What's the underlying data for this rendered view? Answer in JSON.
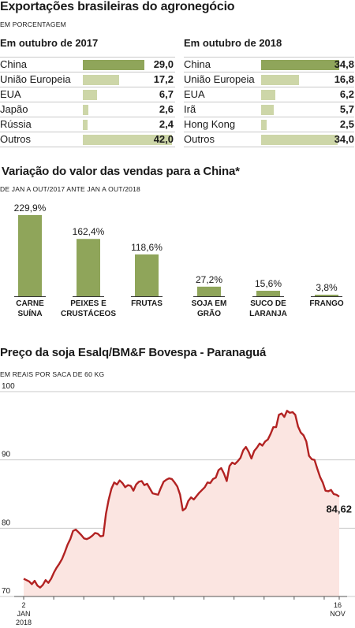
{
  "header": {
    "title": "Exportações brasileiras do agronegócio",
    "subtitle": "EM PORCENTAGEM"
  },
  "colors": {
    "bar_dark": "#8fa55a",
    "bar_light": "#cdd6a8",
    "line": "#b22222",
    "area": "#fbe5e1",
    "grid": "#c8c8c8"
  },
  "chart_data": [
    {
      "type": "bar",
      "title": "Em outubro de 2017",
      "categories": [
        "China",
        "União Europeia",
        "EUA",
        "Japão",
        "Rússia",
        "Outros"
      ],
      "values": [
        29.0,
        17.2,
        6.7,
        2.6,
        2.4,
        42.0
      ],
      "labels": [
        "29,0",
        "17,2",
        "6,7",
        "2,6",
        "2,4",
        "42,0"
      ]
    },
    {
      "type": "bar",
      "title": "Em outubro de 2018",
      "categories": [
        "China",
        "União Europeia",
        "EUA",
        "Irã",
        "Hong Kong",
        "Outros"
      ],
      "values": [
        34.8,
        16.8,
        6.2,
        5.7,
        2.5,
        34.0
      ],
      "labels": [
        "34,8",
        "16,8",
        "6,2",
        "5,7",
        "2,5",
        "34,0"
      ]
    },
    {
      "type": "bar",
      "title": "Variação do valor das vendas para a China*",
      "subtitle": "DE JAN A OUT/2017 ANTE JAN A OUT/2018",
      "categories": [
        "CARNE SUÍNA",
        "PEIXES E CRUSTÁCEOS",
        "FRUTAS",
        "SOJA EM GRÃO",
        "SUCO DE LARANJA",
        "FRANGO"
      ],
      "category_lines": [
        [
          "CARNE",
          "SUÍNA"
        ],
        [
          "PEIXES E",
          "CRUSTÁCEOS"
        ],
        [
          "FRUTAS"
        ],
        [
          "SOJA EM",
          "GRÃO"
        ],
        [
          "SUCO DE",
          "LARANJA"
        ],
        [
          "FRANGO"
        ]
      ],
      "values": [
        229.9,
        162.4,
        118.6,
        27.2,
        15.6,
        3.8
      ],
      "labels": [
        "229,9%",
        "162,4%",
        "118,6%",
        "27,2%",
        "15,6%",
        "3,8%"
      ]
    },
    {
      "type": "area",
      "title": "Preço da soja Esalq/BM&F Bovespa - Paranaguá",
      "subtitle": "EM REAIS POR SACA DE 60 KG",
      "ylim": [
        70,
        100
      ],
      "yticks": [
        70,
        80,
        90,
        100
      ],
      "grid": true,
      "x_start_label": [
        "2",
        "JAN",
        "2018"
      ],
      "x_end_label": [
        "16",
        "NOV"
      ],
      "last_value_label": "84,62",
      "series": [
        {
          "values": [
            72.6,
            72.4,
            72.2,
            71.8,
            72.3,
            71.6,
            71.3,
            71.7,
            72.4,
            72.0,
            72.6,
            73.5,
            74.2,
            74.8,
            75.5,
            76.5,
            77.6,
            78.4,
            79.6,
            79.8,
            79.4,
            79.0,
            78.5,
            78.4,
            78.6,
            78.9,
            79.3,
            79.2,
            78.8,
            78.9,
            82.1,
            84.2,
            85.8,
            86.7,
            86.4,
            87.0,
            86.6,
            86.0,
            86.3,
            86.2,
            85.5,
            86.4,
            86.8,
            86.9,
            86.3,
            86.5,
            85.8,
            85.1,
            85.0,
            84.9,
            85.9,
            86.8,
            87.1,
            87.3,
            87.2,
            86.7,
            86.1,
            84.9,
            82.6,
            82.9,
            84.0,
            84.5,
            84.2,
            84.7,
            85.2,
            85.6,
            86.0,
            86.7,
            86.6,
            87.2,
            87.4,
            88.5,
            88.8,
            88.0,
            86.9,
            89.1,
            89.6,
            89.4,
            89.8,
            90.3,
            91.4,
            91.9,
            91.2,
            90.2,
            91.3,
            91.8,
            92.4,
            92.1,
            92.7,
            93.0,
            93.8,
            94.8,
            94.8,
            96.6,
            96.8,
            96.3,
            97.2,
            96.9,
            97.0,
            96.6,
            94.9,
            94.0,
            93.6,
            92.7,
            90.6,
            90.1,
            90.0,
            88.7,
            87.5,
            86.7,
            85.5,
            85.4,
            85.6,
            85.0,
            84.9,
            84.62
          ]
        }
      ]
    }
  ]
}
